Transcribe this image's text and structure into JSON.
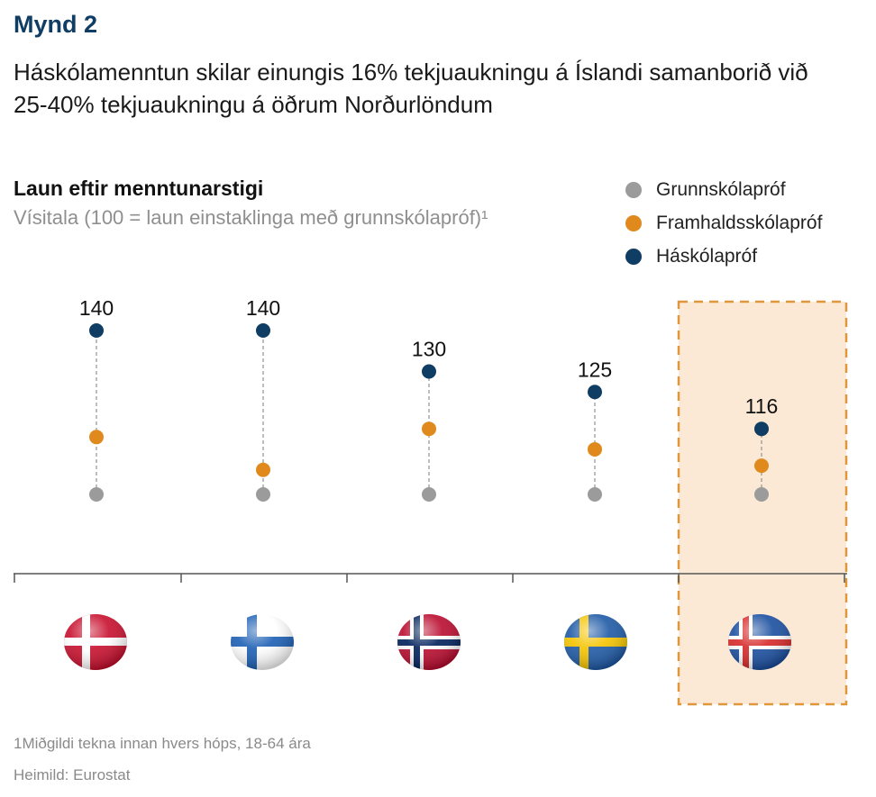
{
  "figure_label": "Mynd 2",
  "headline": "Háskólamenntun skilar einungis 16% tekjuaukningu á Íslandi samanborið við 25-40% tekjuaukningu á öðrum Norðurlöndum",
  "footnote": "1Miðgildi tekna innan hvers hóps, 18-64 ára",
  "source": "Heimild: Eurostat",
  "colors": {
    "grunnskolaprof": "#9b9b9b",
    "framhaldsskolaprof": "#e08a1e",
    "haskolaprof": "#0f3d63",
    "highlight_fill": "#fce9d5",
    "highlight_border": "#e0963a"
  },
  "chart_data": {
    "type": "scatter",
    "title": "Laun eftir menntunarstigi",
    "subtitle": "Vísitala (100 = laun einstaklinga með grunnskólapróf)¹",
    "categories": [
      "Danmörk",
      "Finnland",
      "Noregur",
      "Svíþjóð",
      "Ísland"
    ],
    "category_icons": [
      "denmark-flag-icon",
      "finland-flag-icon",
      "norway-flag-icon",
      "sweden-flag-icon",
      "iceland-flag-icon"
    ],
    "series": [
      {
        "name": "Grunnskólapróf",
        "values": [
          100,
          100,
          100,
          100,
          100
        ]
      },
      {
        "name": "Framhaldsskólapróf",
        "values": [
          114,
          106,
          116,
          111,
          107
        ]
      },
      {
        "name": "Háskólapróf",
        "values": [
          140,
          140,
          130,
          125,
          116
        ]
      }
    ],
    "data_labels": [
      "140",
      "140",
      "130",
      "125",
      "116"
    ],
    "highlighted_category": "Ísland",
    "legend_position": "top-right",
    "grid": false
  }
}
